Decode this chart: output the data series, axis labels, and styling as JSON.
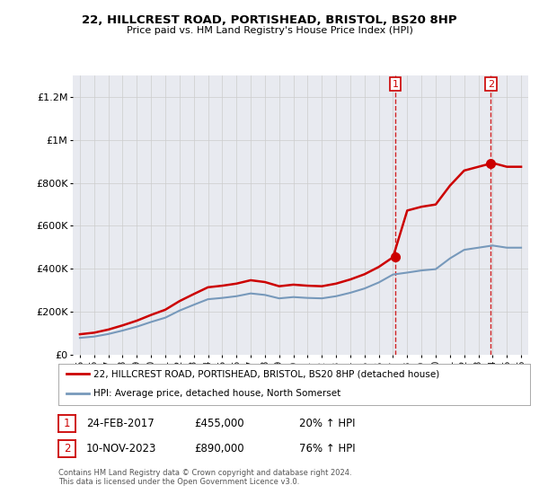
{
  "title": "22, HILLCREST ROAD, PORTISHEAD, BRISTOL, BS20 8HP",
  "subtitle": "Price paid vs. HM Land Registry's House Price Index (HPI)",
  "footer": "Contains HM Land Registry data © Crown copyright and database right 2024.\nThis data is licensed under the Open Government Licence v3.0.",
  "legend_line1": "22, HILLCREST ROAD, PORTISHEAD, BRISTOL, BS20 8HP (detached house)",
  "legend_line2": "HPI: Average price, detached house, North Somerset",
  "annotation1_label": "1",
  "annotation1_date": "24-FEB-2017",
  "annotation1_price": "£455,000",
  "annotation1_hpi": "20% ↑ HPI",
  "annotation2_label": "2",
  "annotation2_date": "10-NOV-2023",
  "annotation2_price": "£890,000",
  "annotation2_hpi": "76% ↑ HPI",
  "red_color": "#cc0000",
  "blue_color": "#7799bb",
  "grid_color": "#cccccc",
  "background_color": "#ffffff",
  "plot_bg_color": "#e8eaf0",
  "ylim": [
    0,
    1300000
  ],
  "yticks": [
    0,
    200000,
    400000,
    600000,
    800000,
    1000000,
    1200000
  ],
  "ytick_labels": [
    "£0",
    "£200K",
    "£400K",
    "£600K",
    "£800K",
    "£1M",
    "£1.2M"
  ],
  "hpi_years": [
    1995,
    1996,
    1997,
    1998,
    1999,
    2000,
    2001,
    2002,
    2003,
    2004,
    2005,
    2006,
    2007,
    2008,
    2009,
    2010,
    2011,
    2012,
    2013,
    2014,
    2015,
    2016,
    2017,
    2018,
    2019,
    2020,
    2021,
    2022,
    2023,
    2024,
    2025,
    2026
  ],
  "hpi_values": [
    78000,
    84000,
    96000,
    112000,
    130000,
    152000,
    172000,
    205000,
    232000,
    258000,
    264000,
    272000,
    285000,
    278000,
    262000,
    268000,
    264000,
    262000,
    272000,
    288000,
    308000,
    336000,
    373000,
    382000,
    392000,
    398000,
    448000,
    488000,
    498000,
    508000,
    498000,
    498000
  ],
  "sale1_year": 2017.15,
  "sale1_price": 455000,
  "sale2_year": 2023.87,
  "sale2_price": 890000,
  "vline1_year": 2017.15,
  "vline2_year": 2023.87,
  "xlim_left": 1994.5,
  "xlim_right": 2026.5
}
